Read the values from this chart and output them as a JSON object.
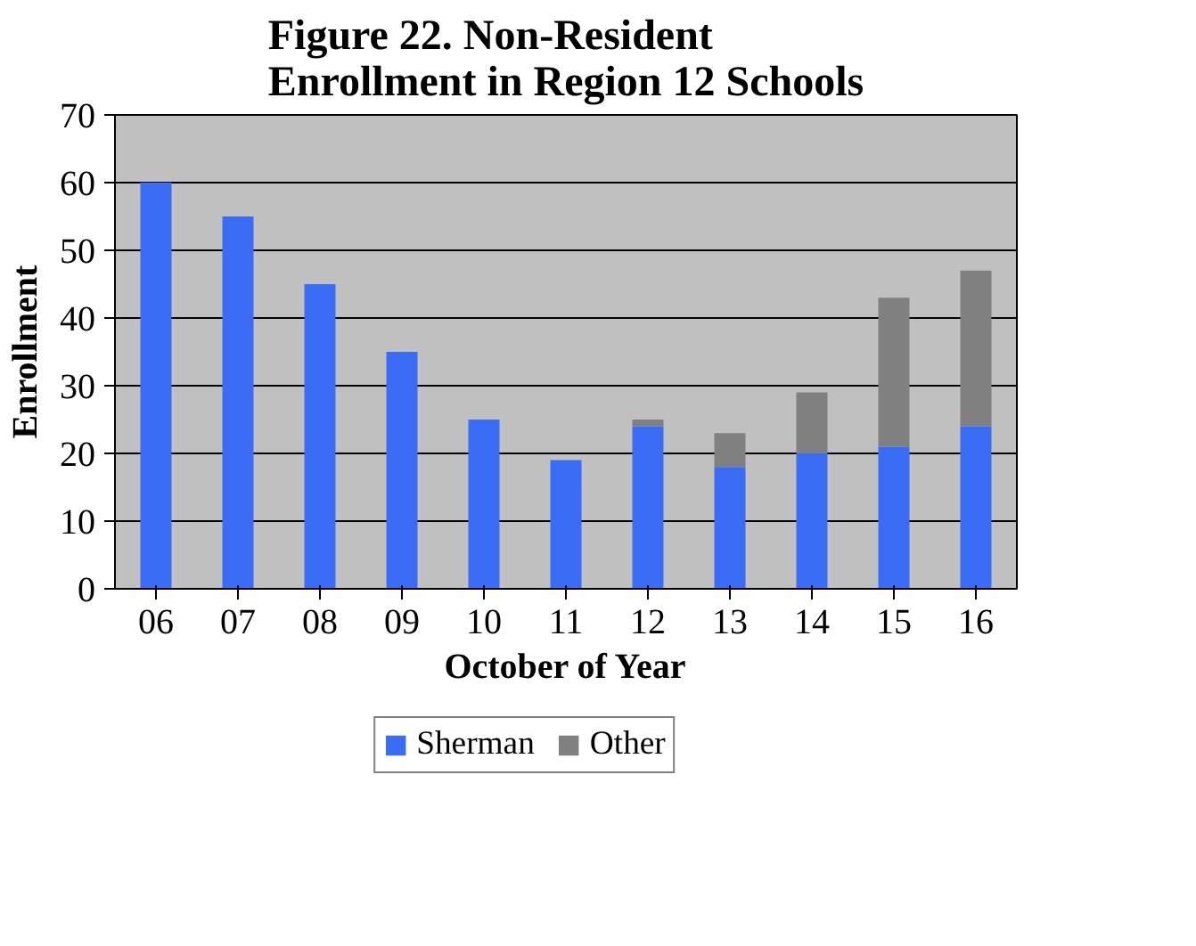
{
  "chart_data": {
    "type": "bar",
    "title": "Figure 22. Non-Resident Enrollment in Region 12 Schools",
    "xlabel": "October of Year",
    "ylabel": "Enrollment",
    "categories": [
      "06",
      "07",
      "08",
      "09",
      "10",
      "11",
      "12",
      "13",
      "14",
      "15",
      "16"
    ],
    "stacked": true,
    "series": [
      {
        "name": "Sherman",
        "color": "#3b6cf5",
        "values": [
          60,
          55,
          45,
          35,
          25,
          19,
          24,
          18,
          20,
          21,
          24
        ]
      },
      {
        "name": "Other",
        "color": "#808080",
        "values": [
          0,
          0,
          0,
          0,
          0,
          0,
          1,
          5,
          9,
          22,
          23
        ]
      }
    ],
    "ylim": [
      0,
      70
    ],
    "yticks": [
      0,
      10,
      20,
      30,
      40,
      50,
      60,
      70
    ],
    "grid": "y",
    "legend": "bottom"
  }
}
